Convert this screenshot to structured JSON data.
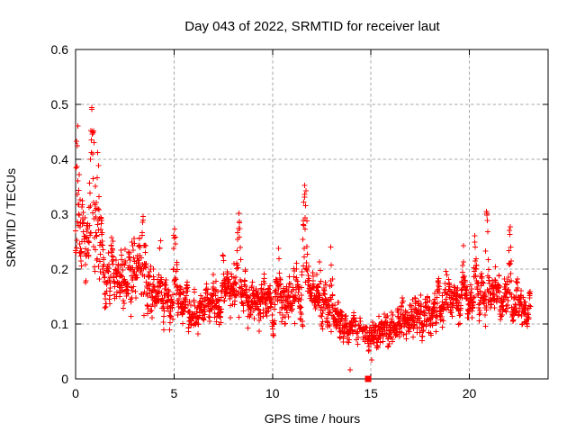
{
  "figure": {
    "background": "#ffffff"
  },
  "chart_data": {
    "type": "scatter",
    "title": "Day 043 of 2022, SRMTID for receiver laut",
    "xlabel": "GPS time / hours",
    "ylabel": "SRMTID / TECUs",
    "xlim": [
      0,
      24
    ],
    "ylim": [
      0,
      0.6
    ],
    "xticks": [
      0,
      5,
      10,
      15,
      20
    ],
    "xtick_labels": [
      "0",
      "5",
      "10",
      "15",
      "20"
    ],
    "yticks": [
      0,
      0.1,
      0.2,
      0.3,
      0.4,
      0.5,
      0.6
    ],
    "ytick_labels": [
      "0",
      "0.1",
      "0.2",
      "0.3",
      "0.4",
      "0.5",
      "0.6"
    ],
    "grid": true,
    "grid_style": "dashed",
    "legend": "none",
    "marker": "plus",
    "colors": {
      "points": "#ff0000",
      "grid": "#aaaaaa",
      "axis": "#000000",
      "text": "#000000"
    },
    "series": [
      {
        "name": "SRMTID scatter",
        "style": "points-plus",
        "seed": 43,
        "time_range": [
          0,
          23.1
        ],
        "approx_point_count": 2300,
        "sampling_hours": [
          0,
          1,
          2,
          3,
          4,
          5,
          6,
          7,
          8,
          9,
          10,
          11,
          12,
          13,
          14,
          15,
          16,
          17,
          18,
          19,
          20,
          21,
          22,
          23,
          24
        ],
        "envelope_low": [
          0.17,
          0.15,
          0.11,
          0.12,
          0.09,
          0.09,
          0.08,
          0.09,
          0.1,
          0.09,
          0.08,
          0.09,
          0.1,
          0.07,
          0.05,
          0.04,
          0.05,
          0.06,
          0.07,
          0.08,
          0.09,
          0.1,
          0.09,
          0.08,
          0.08
        ],
        "envelope_high": [
          0.34,
          0.33,
          0.25,
          0.27,
          0.21,
          0.21,
          0.17,
          0.19,
          0.21,
          0.19,
          0.19,
          0.22,
          0.21,
          0.17,
          0.12,
          0.11,
          0.13,
          0.14,
          0.17,
          0.19,
          0.2,
          0.21,
          0.2,
          0.16,
          0.15
        ],
        "spikes": [
          [
            0.1,
            0.47,
            0.2
          ],
          [
            0.85,
            0.505,
            0.22
          ],
          [
            1.15,
            0.42,
            0.15
          ],
          [
            2.95,
            0.3,
            0.18
          ],
          [
            3.45,
            0.3,
            0.22
          ],
          [
            4.3,
            0.26,
            0.15
          ],
          [
            5.05,
            0.28,
            0.18
          ],
          [
            7.5,
            0.23,
            0.15
          ],
          [
            8.3,
            0.31,
            0.18
          ],
          [
            10.35,
            0.25,
            0.12
          ],
          [
            11.65,
            0.37,
            0.2
          ],
          [
            12.4,
            0.22,
            0.1
          ],
          [
            13.0,
            0.26,
            0.12
          ],
          [
            16.6,
            0.15,
            0.15
          ],
          [
            18.8,
            0.22,
            0.12
          ],
          [
            19.7,
            0.25,
            0.1
          ],
          [
            20.3,
            0.31,
            0.12
          ],
          [
            20.9,
            0.32,
            0.15
          ],
          [
            22.05,
            0.3,
            0.12
          ]
        ]
      },
      {
        "name": "flagged zero point",
        "style": "filled-square",
        "points": [
          [
            14.86,
            0.0
          ]
        ]
      }
    ],
    "isolated_low_points": [
      [
        13.94,
        0.016
      ],
      [
        15.04,
        0.034
      ]
    ],
    "sparse_ranges": [
      [
        14.15,
        14.8,
        0.55
      ]
    ]
  }
}
